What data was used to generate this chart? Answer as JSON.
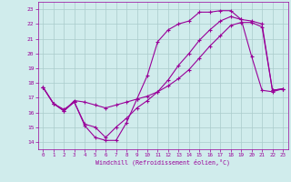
{
  "xlabel": "Windchill (Refroidissement éolien,°C)",
  "bg_color": "#d0ecec",
  "line_color": "#990099",
  "grid_color": "#aacccc",
  "xlim": [
    -0.5,
    23.5
  ],
  "ylim": [
    13.5,
    23.5
  ],
  "yticks": [
    14,
    15,
    16,
    17,
    18,
    19,
    20,
    21,
    22,
    23
  ],
  "xticks": [
    0,
    1,
    2,
    3,
    4,
    5,
    6,
    7,
    8,
    9,
    10,
    11,
    12,
    13,
    14,
    15,
    16,
    17,
    18,
    19,
    20,
    21,
    22,
    23
  ],
  "line1_x": [
    0,
    1,
    2,
    3,
    4,
    5,
    6,
    7,
    8,
    9,
    10,
    11,
    12,
    13,
    14,
    15,
    16,
    17,
    18,
    19,
    20,
    21,
    22,
    23
  ],
  "line1_y": [
    17.7,
    16.6,
    16.1,
    16.7,
    15.1,
    14.3,
    14.1,
    14.1,
    15.3,
    16.9,
    18.5,
    20.8,
    21.6,
    22.0,
    22.2,
    22.8,
    22.8,
    22.9,
    22.9,
    22.3,
    19.8,
    17.5,
    17.4,
    17.6
  ],
  "line2_x": [
    0,
    1,
    2,
    3,
    4,
    5,
    6,
    7,
    8,
    9,
    10,
    11,
    12,
    13,
    14,
    15,
    16,
    17,
    18,
    19,
    20,
    21,
    22,
    23
  ],
  "line2_y": [
    17.7,
    16.6,
    16.2,
    16.7,
    15.2,
    15.0,
    14.3,
    15.0,
    15.6,
    16.3,
    16.8,
    17.4,
    18.2,
    19.2,
    20.0,
    20.9,
    21.6,
    22.2,
    22.5,
    22.3,
    22.2,
    22.0,
    17.5,
    17.6
  ],
  "line3_x": [
    0,
    1,
    2,
    3,
    4,
    5,
    6,
    7,
    8,
    9,
    10,
    11,
    12,
    13,
    14,
    15,
    16,
    17,
    18,
    19,
    20,
    21,
    22,
    23
  ],
  "line3_y": [
    17.7,
    16.6,
    16.1,
    16.8,
    16.7,
    16.5,
    16.3,
    16.5,
    16.7,
    16.9,
    17.1,
    17.4,
    17.8,
    18.3,
    18.9,
    19.7,
    20.5,
    21.2,
    21.9,
    22.1,
    22.1,
    21.8,
    17.5,
    17.6
  ]
}
